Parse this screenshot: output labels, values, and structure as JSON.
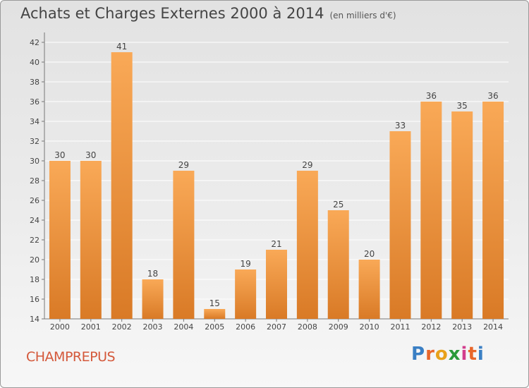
{
  "header": {
    "title": "Achats et Charges Externes 2000 à 2014",
    "unit": "(en milliers d'€)"
  },
  "footer": {
    "commune": "CHAMPREPUS"
  },
  "logo": {
    "letters": [
      "P",
      "r",
      "o",
      "x",
      "i",
      "t",
      "i"
    ],
    "colors": [
      "#3a7fc4",
      "#e8662a",
      "#e8a11a",
      "#2a9a3a",
      "#d23c8c",
      "#e8662a",
      "#3a7fc4"
    ]
  },
  "colors": {
    "bar_light": "#f9a957",
    "bar_dark": "#d97a26",
    "grid": "#ffffff",
    "axis": "#777777"
  },
  "chart_data": {
    "type": "bar",
    "title": "Achats et Charges Externes 2000 à 2014",
    "subtitle": "(en milliers d'€)",
    "categories": [
      "2000",
      "2001",
      "2002",
      "2003",
      "2004",
      "2005",
      "2006",
      "2007",
      "2008",
      "2009",
      "2010",
      "2011",
      "2012",
      "2013",
      "2014"
    ],
    "values": [
      30,
      30,
      41,
      18,
      29,
      15,
      19,
      21,
      29,
      25,
      20,
      33,
      36,
      35,
      36
    ],
    "ylim": [
      14,
      43
    ],
    "yticks": [
      14,
      16,
      18,
      20,
      22,
      24,
      26,
      28,
      30,
      32,
      34,
      36,
      38,
      40,
      42
    ],
    "grid": true,
    "data_labels": true
  }
}
